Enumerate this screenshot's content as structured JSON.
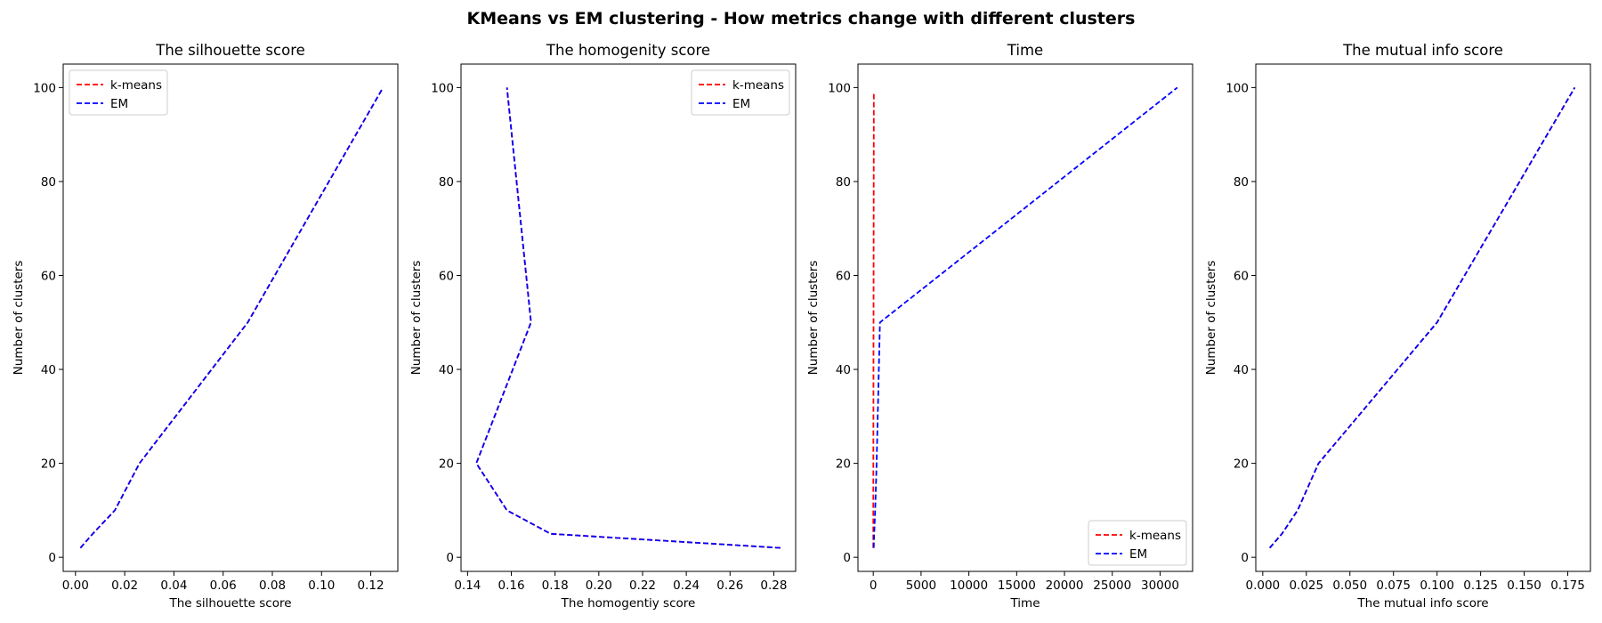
{
  "figure": {
    "suptitle": "KMeans vs EM clustering - How metrics change with different clusters"
  },
  "colors": {
    "kmeans": "#ff0000",
    "em": "#0000ff",
    "axes": "#000000"
  },
  "chart_data": [
    {
      "type": "line",
      "title": "The silhouette score",
      "xlabel": "The silhouette score",
      "ylabel": "Number of clusters",
      "xlim": [
        -0.005,
        0.131
      ],
      "ylim": [
        -3,
        105
      ],
      "xticks": [
        0.0,
        0.02,
        0.04,
        0.06,
        0.08,
        0.1,
        0.12
      ],
      "xtick_labels": [
        "0.00",
        "0.02",
        "0.04",
        "0.06",
        "0.08",
        "0.10",
        "0.12"
      ],
      "yticks": [
        0,
        20,
        40,
        60,
        80,
        100
      ],
      "ytick_labels": [
        "0",
        "20",
        "40",
        "60",
        "80",
        "100"
      ],
      "legend": "upper-left",
      "series": [
        {
          "name": "k-means",
          "color": "#ff0000",
          "style": "dashed",
          "x": [
            0.002,
            0.007,
            0.016,
            0.026,
            0.07,
            0.125
          ],
          "y": [
            2,
            5,
            10,
            20,
            50,
            100
          ]
        },
        {
          "name": "EM",
          "color": "#0000ff",
          "style": "dashed",
          "x": [
            0.002,
            0.007,
            0.016,
            0.026,
            0.07,
            0.125
          ],
          "y": [
            2,
            5,
            10,
            20,
            50,
            100
          ]
        }
      ]
    },
    {
      "type": "line",
      "title": "The homogenity score",
      "xlabel": "The homogentiy score",
      "ylabel": "Number of clusters",
      "xlim": [
        0.137,
        0.29
      ],
      "ylim": [
        -3,
        105
      ],
      "xticks": [
        0.14,
        0.16,
        0.18,
        0.2,
        0.22,
        0.24,
        0.26,
        0.28
      ],
      "xtick_labels": [
        "0.14",
        "0.16",
        "0.18",
        "0.20",
        "0.22",
        "0.24",
        "0.26",
        "0.28"
      ],
      "yticks": [
        0,
        20,
        40,
        60,
        80,
        100
      ],
      "ytick_labels": [
        "0",
        "20",
        "40",
        "60",
        "80",
        "100"
      ],
      "legend": "upper-right",
      "series": [
        {
          "name": "k-means",
          "color": "#ff0000",
          "style": "dashed",
          "x": [
            0.283,
            0.178,
            0.158,
            0.144,
            0.169,
            0.158
          ],
          "y": [
            2,
            5,
            10,
            20,
            50,
            100
          ]
        },
        {
          "name": "EM",
          "color": "#0000ff",
          "style": "dashed",
          "x": [
            0.283,
            0.178,
            0.158,
            0.144,
            0.169,
            0.158
          ],
          "y": [
            2,
            5,
            10,
            20,
            50,
            100
          ]
        }
      ]
    },
    {
      "type": "line",
      "title": "Time",
      "xlabel": "Time",
      "ylabel": "Number of clusters",
      "xlim": [
        -1600,
        33400
      ],
      "ylim": [
        -3,
        105
      ],
      "xticks": [
        0,
        5000,
        10000,
        15000,
        20000,
        25000,
        30000
      ],
      "xtick_labels": [
        "0",
        "5000",
        "10000",
        "15000",
        "20000",
        "25000",
        "30000"
      ],
      "yticks": [
        0,
        20,
        40,
        60,
        80,
        100
      ],
      "ytick_labels": [
        "0",
        "20",
        "40",
        "60",
        "80",
        "100"
      ],
      "legend": "lower-right",
      "series": [
        {
          "name": "k-means",
          "color": "#ff0000",
          "style": "dashed",
          "x": [
            0,
            2,
            5,
            10,
            30,
            60
          ],
          "y": [
            2,
            5,
            10,
            20,
            50,
            99
          ]
        },
        {
          "name": "EM",
          "color": "#0000ff",
          "style": "dashed",
          "x": [
            50,
            100,
            200,
            350,
            700,
            31800
          ],
          "y": [
            2,
            5,
            10,
            20,
            50,
            100
          ]
        }
      ]
    },
    {
      "type": "line",
      "title": "The mutual info score",
      "xlabel": "The mutual info score",
      "ylabel": "Number of clusters",
      "xlim": [
        -0.004,
        0.188
      ],
      "ylim": [
        -3,
        105
      ],
      "xticks": [
        0.0,
        0.025,
        0.05,
        0.075,
        0.1,
        0.125,
        0.15,
        0.175
      ],
      "xtick_labels": [
        "0.000",
        "0.025",
        "0.050",
        "0.075",
        "0.100",
        "0.125",
        "0.150",
        "0.175"
      ],
      "yticks": [
        0,
        20,
        40,
        60,
        80,
        100
      ],
      "ytick_labels": [
        "0",
        "20",
        "40",
        "60",
        "80",
        "100"
      ],
      "legend": "none",
      "series": [
        {
          "name": "k-means",
          "color": "#ff0000",
          "style": "dashed",
          "x": [
            0.004,
            0.011,
            0.02,
            0.032,
            0.1,
            0.179
          ],
          "y": [
            2,
            5,
            10,
            20,
            50,
            100
          ]
        },
        {
          "name": "EM",
          "color": "#0000ff",
          "style": "dashed",
          "x": [
            0.004,
            0.011,
            0.02,
            0.032,
            0.1,
            0.179
          ],
          "y": [
            2,
            5,
            10,
            20,
            50,
            100
          ]
        }
      ]
    }
  ]
}
